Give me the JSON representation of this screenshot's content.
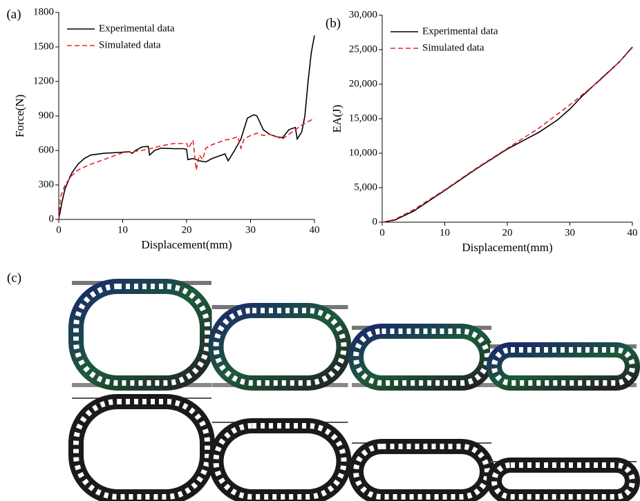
{
  "chart_data": [
    {
      "type": "line",
      "panel_label": "(a)",
      "xlabel": "Displacement(mm)",
      "ylabel": "Force(N)",
      "xlim": [
        0,
        40
      ],
      "ylim": [
        0,
        1800
      ],
      "xticks": [
        0,
        10,
        20,
        30,
        40
      ],
      "yticks": [
        0,
        300,
        600,
        900,
        1200,
        1500,
        1800
      ],
      "legend": "upper-left",
      "series": [
        {
          "name": "Experimental data",
          "color": "#000000",
          "line_style": "solid",
          "x": [
            0,
            0.5,
            1,
            2,
            3,
            4,
            5,
            7,
            10,
            11,
            11.5,
            12,
            13,
            14,
            14.2,
            15,
            16,
            18,
            19.5,
            20,
            20.2,
            21,
            22,
            23,
            24,
            26,
            26.5,
            27.5,
            28.5,
            29.5,
            30.5,
            31,
            32,
            33,
            34,
            35,
            36,
            37,
            37.3,
            38,
            38.5,
            39,
            39.5,
            40
          ],
          "values": [
            0,
            150,
            270,
            400,
            480,
            530,
            560,
            575,
            585,
            590,
            575,
            600,
            630,
            635,
            560,
            600,
            620,
            615,
            615,
            610,
            520,
            530,
            510,
            500,
            530,
            570,
            510,
            600,
            700,
            880,
            910,
            900,
            780,
            740,
            720,
            710,
            780,
            800,
            700,
            760,
            900,
            1200,
            1450,
            1600
          ]
        },
        {
          "name": "Simulated data",
          "color": "#e8202a",
          "line_style": "dashed",
          "x": [
            0,
            0.3,
            1,
            2,
            3,
            5,
            7,
            10,
            13,
            14,
            16,
            18,
            20,
            20.3,
            21,
            21.5,
            22,
            22.5,
            23,
            24,
            26,
            27,
            28,
            28.5,
            29,
            30,
            31,
            32,
            33,
            35,
            36,
            37,
            38,
            39,
            40
          ],
          "values": [
            0,
            200,
            300,
            380,
            430,
            480,
            520,
            580,
            600,
            610,
            640,
            660,
            660,
            620,
            690,
            430,
            560,
            520,
            620,
            650,
            690,
            700,
            720,
            620,
            700,
            730,
            750,
            730,
            740,
            700,
            740,
            780,
            820,
            850,
            880
          ]
        }
      ]
    },
    {
      "type": "line",
      "panel_label": "(b)",
      "xlabel": "Displacement(mm)",
      "ylabel": "EA(J)",
      "xlim": [
        0,
        40
      ],
      "ylim": [
        0,
        30000
      ],
      "xticks": [
        0,
        10,
        20,
        30,
        40
      ],
      "yticks": [
        0,
        {
          "value": 5000,
          "label": "5,000"
        },
        {
          "value": 10000,
          "label": "10,000"
        },
        {
          "value": 15000,
          "label": "15,000"
        },
        {
          "value": 20000,
          "label": "20,000"
        },
        {
          "value": 25000,
          "label": "25,000"
        },
        {
          "value": 30000,
          "label": "30,000"
        }
      ],
      "legend": "upper-left",
      "series": [
        {
          "name": "Experimental data",
          "color": "#000000",
          "line_style": "solid",
          "x": [
            0,
            2,
            5,
            10,
            15,
            20,
            25,
            28,
            30,
            32,
            35,
            38,
            40
          ],
          "values": [
            0,
            300,
            1600,
            4600,
            7700,
            10600,
            13000,
            14800,
            16400,
            18300,
            20800,
            23300,
            25400
          ]
        },
        {
          "name": "Simulated data",
          "color": "#e8202a",
          "line_style": "dashed",
          "x": [
            0,
            2,
            5,
            10,
            15,
            20,
            25,
            30,
            35,
            38,
            40
          ],
          "values": [
            0,
            400,
            1800,
            4700,
            7800,
            10700,
            13600,
            17000,
            20700,
            23300,
            25300
          ]
        }
      ]
    }
  ],
  "images": {
    "label": "(c)"
  }
}
